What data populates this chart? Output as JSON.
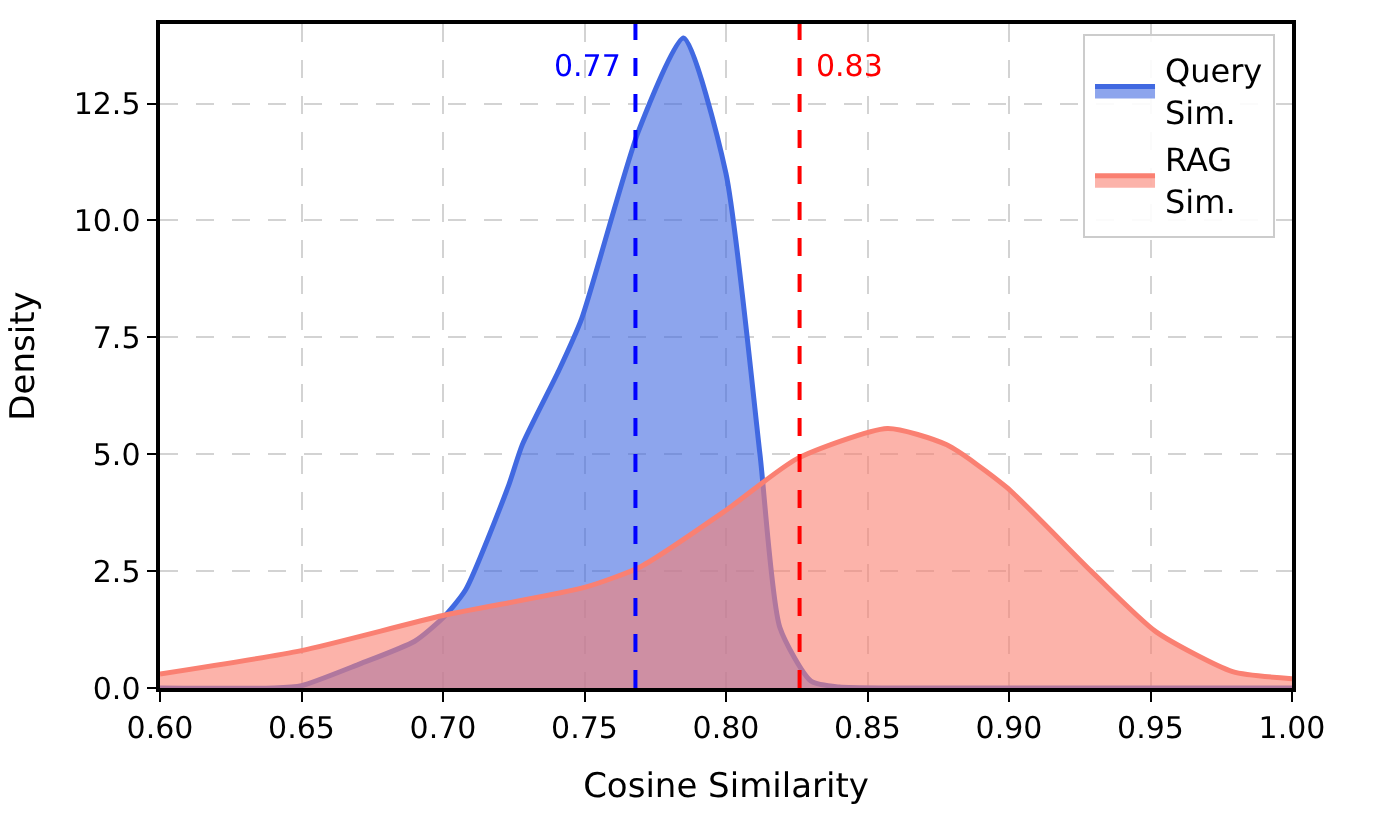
{
  "chart_data": {
    "type": "area",
    "xlabel": "Cosine Similarity",
    "ylabel": "Density",
    "series": [
      {
        "name": "Query\nSim.",
        "color": "#4169e1",
        "x": [
          0.6,
          0.64,
          0.65,
          0.67,
          0.69,
          0.7,
          0.708,
          0.723,
          0.728,
          0.741,
          0.749,
          0.769,
          0.785,
          0.8,
          0.812,
          0.819,
          0.83,
          0.84,
          0.86,
          1.0
        ],
        "values": [
          0,
          0,
          0.05,
          0.5,
          1.0,
          1.5,
          2.1,
          4.3,
          5.2,
          6.8,
          7.9,
          11.9,
          13.9,
          11.0,
          5.0,
          1.3,
          0.15,
          0.02,
          0,
          0
        ]
      },
      {
        "name": "RAG\nSim.",
        "color": "#fa8072",
        "x": [
          0.6,
          0.65,
          0.7,
          0.75,
          0.77,
          0.8,
          0.825,
          0.857,
          0.878,
          0.899,
          0.929,
          0.952,
          0.979,
          1.0
        ],
        "values": [
          0.3,
          0.8,
          1.55,
          2.15,
          2.6,
          3.8,
          4.9,
          5.55,
          5.2,
          4.3,
          2.5,
          1.2,
          0.35,
          0.2
        ]
      }
    ],
    "ref_lines": [
      {
        "axis": "x",
        "value": 0.768,
        "label": "0.77",
        "color": "#0000ff",
        "line_style": "dashed"
      },
      {
        "axis": "x",
        "value": 0.826,
        "label": "0.83",
        "color": "#ff0000",
        "line_style": "dashed"
      }
    ],
    "xlim": [
      0.6,
      1.0
    ],
    "ylim": [
      0,
      14.2
    ],
    "xticks": [
      {
        "value": 0.6,
        "label": "0.60"
      },
      {
        "value": 0.65,
        "label": "0.65"
      },
      {
        "value": 0.7,
        "label": "0.70"
      },
      {
        "value": 0.75,
        "label": "0.75"
      },
      {
        "value": 0.8,
        "label": "0.80"
      },
      {
        "value": 0.85,
        "label": "0.85"
      },
      {
        "value": 0.9,
        "label": "0.90"
      },
      {
        "value": 0.95,
        "label": "0.95"
      },
      {
        "value": 1.0,
        "label": "1.00"
      }
    ],
    "yticks": [
      {
        "value": 0,
        "label": "0.0"
      },
      {
        "value": 2.5,
        "label": "2.5"
      },
      {
        "value": 5,
        "label": "5.0"
      },
      {
        "value": 7.5,
        "label": "7.5"
      },
      {
        "value": 10,
        "label": "10.0"
      },
      {
        "value": 12.5,
        "label": "12.5"
      }
    ],
    "grid": true,
    "legend": "top right"
  }
}
